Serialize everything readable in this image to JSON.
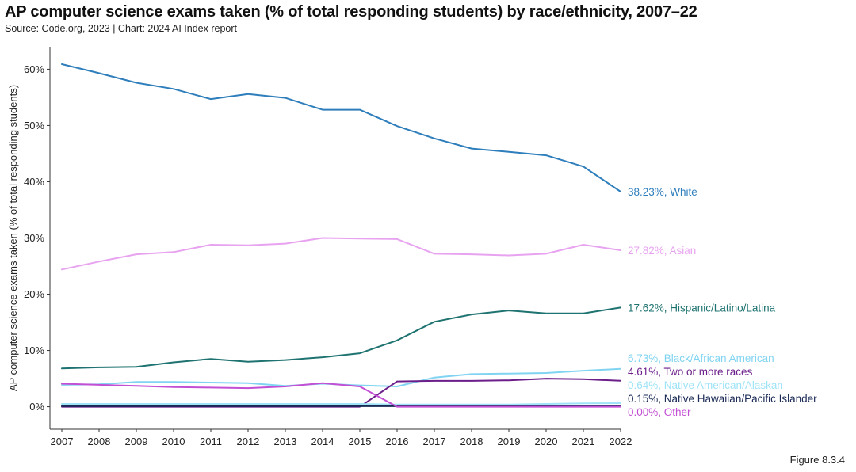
{
  "title": "AP computer science exams taken (% of total responding students) by race/ethnicity, 2007–22",
  "source": "Source: Code.org, 2023 | Chart: 2024 AI Index report",
  "figure_label": "Figure 8.3.4",
  "chart_data": {
    "type": "line",
    "title": "AP computer science exams taken (% of total responding students) by race/ethnicity, 2007–22",
    "xlabel": "",
    "ylabel": "AP computer science exams taken (% of total responding students)",
    "x": [
      2007,
      2008,
      2009,
      2010,
      2011,
      2012,
      2013,
      2014,
      2015,
      2016,
      2017,
      2018,
      2019,
      2020,
      2021,
      2022
    ],
    "x_tick_labels": [
      "2007",
      "2008",
      "2009",
      "2010",
      "2011",
      "2012",
      "2013",
      "2014",
      "2015",
      "2016",
      "2017",
      "2018",
      "2019",
      "2020",
      "2021",
      "2022"
    ],
    "ylim": [
      -4,
      64
    ],
    "y_ticks": [
      0,
      10,
      20,
      30,
      40,
      50,
      60
    ],
    "y_tick_labels": [
      "0%",
      "10%",
      "20%",
      "30%",
      "40%",
      "50%",
      "60%"
    ],
    "grid": false,
    "series": [
      {
        "name": "White",
        "color": "#2e7ebc",
        "end_label": "38.23%, White",
        "values": [
          60.9,
          59.3,
          57.6,
          56.5,
          54.7,
          55.6,
          54.9,
          52.8,
          52.8,
          49.9,
          47.7,
          45.9,
          45.3,
          44.7,
          42.7,
          38.23
        ]
      },
      {
        "name": "Asian",
        "color": "#e8a3f0",
        "end_label": "27.82%, Asian",
        "values": [
          24.4,
          25.8,
          27.1,
          27.5,
          28.8,
          28.7,
          29.0,
          30.0,
          29.9,
          29.8,
          27.2,
          27.1,
          26.9,
          27.2,
          28.8,
          27.82
        ]
      },
      {
        "name": "Hispanic/Latino/Latina",
        "color": "#1e7370",
        "end_label": "17.62%, Hispanic/Latino/Latina",
        "values": [
          6.8,
          7.0,
          7.1,
          7.9,
          8.5,
          8.0,
          8.3,
          8.8,
          9.5,
          11.8,
          15.1,
          16.4,
          17.1,
          16.6,
          16.6,
          17.62
        ]
      },
      {
        "name": "Black/African American",
        "color": "#80d4f2",
        "end_label": "6.73%, Black/African American",
        "values": [
          3.9,
          4.0,
          4.4,
          4.4,
          4.3,
          4.2,
          3.7,
          4.1,
          3.8,
          3.6,
          5.2,
          5.8,
          5.9,
          6.0,
          6.4,
          6.73
        ]
      },
      {
        "name": "Two or more races",
        "color": "#6c1f8a",
        "end_label": "4.61%, Two or more races",
        "values": [
          0.0,
          0.0,
          0.0,
          0.0,
          0.0,
          0.0,
          0.0,
          0.0,
          0.0,
          4.5,
          4.6,
          4.6,
          4.7,
          5.0,
          4.9,
          4.61
        ]
      },
      {
        "name": "Native American/Alaskan",
        "color": "#9ee3f8",
        "end_label": "0.64%, Native American/Alaskan",
        "values": [
          0.5,
          0.5,
          0.5,
          0.5,
          0.5,
          0.5,
          0.5,
          0.5,
          0.5,
          0.4,
          0.4,
          0.4,
          0.4,
          0.5,
          0.6,
          0.64
        ]
      },
      {
        "name": "Native Hawaiian/Pacific Islander",
        "color": "#1a2a55",
        "end_label": "0.15%, Native Hawaiian/Pacific Islander",
        "values": [
          0.1,
          0.1,
          0.1,
          0.1,
          0.1,
          0.1,
          0.1,
          0.1,
          0.1,
          0.1,
          0.1,
          0.1,
          0.1,
          0.2,
          0.2,
          0.15
        ]
      },
      {
        "name": "Other",
        "color": "#c34fd4",
        "end_label": "0.00%, Other",
        "values": [
          4.1,
          3.9,
          3.7,
          3.5,
          3.4,
          3.3,
          3.6,
          4.2,
          3.6,
          0.0,
          0.0,
          0.0,
          0.0,
          0.0,
          0.0,
          0.0
        ]
      }
    ]
  }
}
